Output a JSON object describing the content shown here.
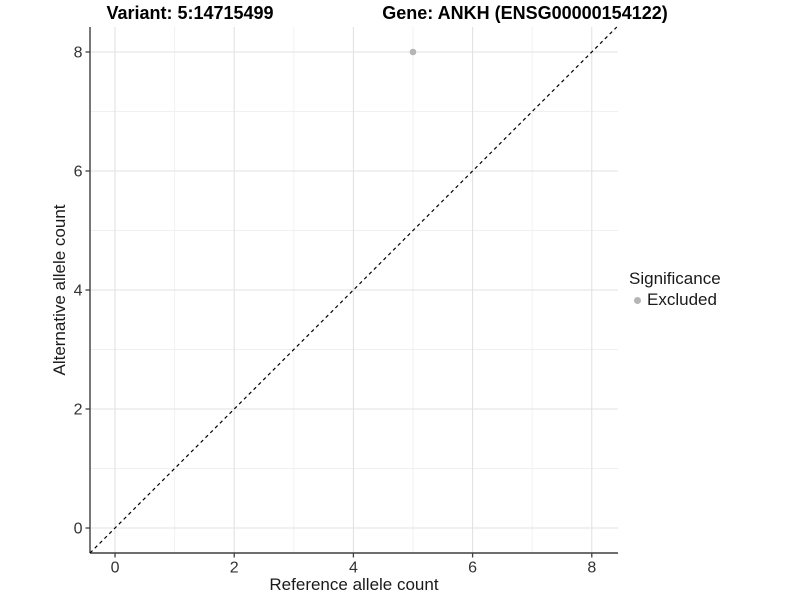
{
  "titles": {
    "variant": "Variant: 5:14715499",
    "gene": "Gene: ANKH (ENSG00000154122)"
  },
  "axes": {
    "x_label": "Reference allele count",
    "y_label": "Alternative allele count"
  },
  "legend": {
    "title": "Significance",
    "items": [
      {
        "label": "Excluded",
        "color": "#b5b5b5",
        "marker": "circle"
      }
    ]
  },
  "colors": {
    "background": "#ffffff",
    "grid_major": "#e2e2e2",
    "grid_minor": "#f0f0f0",
    "axis_line": "#3f3f3f",
    "tick_label": "#333333",
    "reference_line": "#000000",
    "point": "#b5b5b5"
  },
  "chart_data": {
    "type": "scatter",
    "title": "Variant: 5:14715499    Gene: ANKH (ENSG00000154122)",
    "xlabel": "Reference allele count",
    "ylabel": "Alternative allele count",
    "xlim": [
      -0.42,
      8.44
    ],
    "ylim": [
      -0.42,
      8.42
    ],
    "x_ticks": [
      0,
      2,
      4,
      6,
      8
    ],
    "y_ticks": [
      0,
      2,
      4,
      6,
      8
    ],
    "x_minor_ticks": [
      1,
      3,
      5,
      7
    ],
    "y_minor_ticks": [
      1,
      3,
      5,
      7
    ],
    "grid": true,
    "legend_position": "right",
    "series": [
      {
        "name": "Excluded",
        "color": "#b5b5b5",
        "points": [
          {
            "x": 5,
            "y": 8
          }
        ]
      }
    ],
    "reference_line": {
      "type": "identity",
      "style": "dashed",
      "color": "#000000"
    }
  }
}
